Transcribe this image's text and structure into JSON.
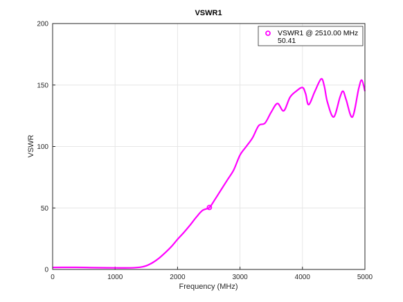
{
  "chart_data": {
    "type": "line",
    "title": "VSWR1",
    "xlabel": "Frequency (MHz)",
    "ylabel": "VSWR",
    "xlim": [
      0,
      5000
    ],
    "ylim": [
      0,
      200
    ],
    "xticks": [
      0,
      1000,
      2000,
      3000,
      4000,
      5000
    ],
    "yticks": [
      0,
      50,
      100,
      150,
      200
    ],
    "xtick_labels": [
      "0",
      "1000",
      "2000",
      "3000",
      "4000",
      "5000"
    ],
    "ytick_labels": [
      "0",
      "50",
      "100",
      "150",
      "200"
    ],
    "grid": true,
    "legend_position": "top-right",
    "series": [
      {
        "color": "#ff00ff",
        "x": [
          0,
          250,
          500,
          750,
          1000,
          1250,
          1400,
          1500,
          1600,
          1700,
          1800,
          1900,
          2000,
          2100,
          2200,
          2300,
          2400,
          2510,
          2600,
          2700,
          2800,
          2900,
          3000,
          3100,
          3200,
          3300,
          3400,
          3500,
          3600,
          3700,
          3800,
          3900,
          4000,
          4050,
          4100,
          4200,
          4300,
          4350,
          4400,
          4500,
          4600,
          4650,
          4700,
          4800,
          4900,
          4950,
          5000
        ],
        "y": [
          1.6,
          1.7,
          1.6,
          1.4,
          1.3,
          1.3,
          1.8,
          3,
          5.5,
          9,
          13.5,
          18.5,
          24.5,
          30,
          36,
          42.5,
          48,
          50.41,
          57,
          65,
          73,
          81,
          93,
          100,
          107,
          117,
          119,
          128,
          135,
          129,
          140,
          145,
          148,
          143,
          134,
          145,
          155,
          149,
          136,
          124,
          140,
          145,
          138,
          124,
          147,
          154,
          145
        ]
      }
    ],
    "marker": {
      "x": 2510,
      "y": 50.41,
      "legend_line1": "VSWR1 @ 2510.00 MHz",
      "legend_line2": "50.41"
    }
  }
}
